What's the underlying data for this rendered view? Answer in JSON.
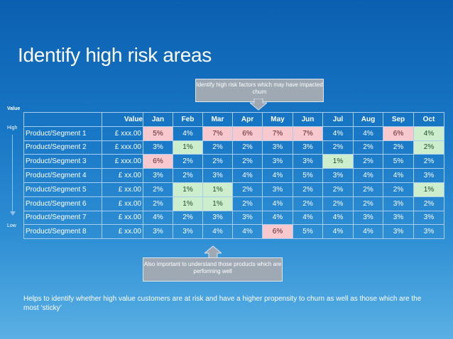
{
  "title": "Identify high risk areas",
  "callout_top": "Identify high risk factors which may have impacted churn",
  "callout_bottom": "Also important to understand those products which are performing well",
  "side": {
    "value_label": "Value",
    "high_label": "High",
    "low_label": "Low"
  },
  "table": {
    "headers": [
      "",
      "Value",
      "Jan",
      "Feb",
      "Mar",
      "Apr",
      "May",
      "Jun",
      "Jul",
      "Aug",
      "Sep",
      "Oct"
    ],
    "highlight_colors": {
      "risk": "#f7c8ce",
      "good": "#cdeecd"
    },
    "rows": [
      {
        "name": "Product/Segment 1",
        "value": "£  xxx.00",
        "cells": [
          "5%",
          "4%",
          "7%",
          "6%",
          "7%",
          "7%",
          "4%",
          "4%",
          "6%",
          "4%"
        ],
        "hl": [
          "r",
          "",
          "r",
          "r",
          "r",
          "r",
          "",
          "",
          "r",
          "g"
        ]
      },
      {
        "name": "Product/Segment 2",
        "value": "£  xxx.00",
        "cells": [
          "3%",
          "1%",
          "2%",
          "2%",
          "3%",
          "3%",
          "2%",
          "2%",
          "2%",
          "2%"
        ],
        "hl": [
          "",
          "g",
          "",
          "",
          "",
          "",
          "",
          "",
          "",
          "g"
        ]
      },
      {
        "name": "Product/Segment 3",
        "value": "£  xxx.00",
        "cells": [
          "6%",
          "2%",
          "2%",
          "2%",
          "3%",
          "3%",
          "1%",
          "2%",
          "5%",
          "2%"
        ],
        "hl": [
          "r",
          "",
          "",
          "",
          "",
          "",
          "g",
          "",
          "",
          ""
        ]
      },
      {
        "name": "Product/Segment 4",
        "value": "£    xx.00",
        "cells": [
          "3%",
          "2%",
          "3%",
          "4%",
          "4%",
          "5%",
          "3%",
          "4%",
          "4%",
          "3%"
        ],
        "hl": [
          "",
          "",
          "",
          "",
          "",
          "",
          "",
          "",
          "",
          ""
        ]
      },
      {
        "name": "Product/Segment 5",
        "value": "£    xx.00",
        "cells": [
          "2%",
          "1%",
          "1%",
          "2%",
          "3%",
          "2%",
          "2%",
          "2%",
          "2%",
          "1%"
        ],
        "hl": [
          "",
          "g",
          "g",
          "",
          "",
          "",
          "",
          "",
          "",
          "g"
        ]
      },
      {
        "name": "Product/Segment 6",
        "value": "£    xx.00",
        "cells": [
          "2%",
          "1%",
          "1%",
          "2%",
          "4%",
          "2%",
          "2%",
          "2%",
          "3%",
          "2%"
        ],
        "hl": [
          "",
          "g",
          "g",
          "",
          "",
          "",
          "",
          "",
          "",
          ""
        ]
      },
      {
        "name": "Product/Segment 7",
        "value": "£    xx.00",
        "cells": [
          "4%",
          "2%",
          "3%",
          "3%",
          "4%",
          "4%",
          "4%",
          "3%",
          "3%",
          "3%"
        ],
        "hl": [
          "",
          "",
          "",
          "",
          "",
          "",
          "",
          "",
          "",
          ""
        ]
      },
      {
        "name": "Product/Segment 8",
        "value": "£    xx.00",
        "cells": [
          "3%",
          "3%",
          "4%",
          "4%",
          "6%",
          "5%",
          "4%",
          "4%",
          "3%",
          "3%"
        ],
        "hl": [
          "",
          "",
          "",
          "",
          "r",
          "",
          "",
          "",
          "",
          ""
        ]
      }
    ]
  },
  "footer": "Helps to identify whether high value customers are at risk  and have a higher propensity to churn as well as those which are the most ‘sticky’"
}
